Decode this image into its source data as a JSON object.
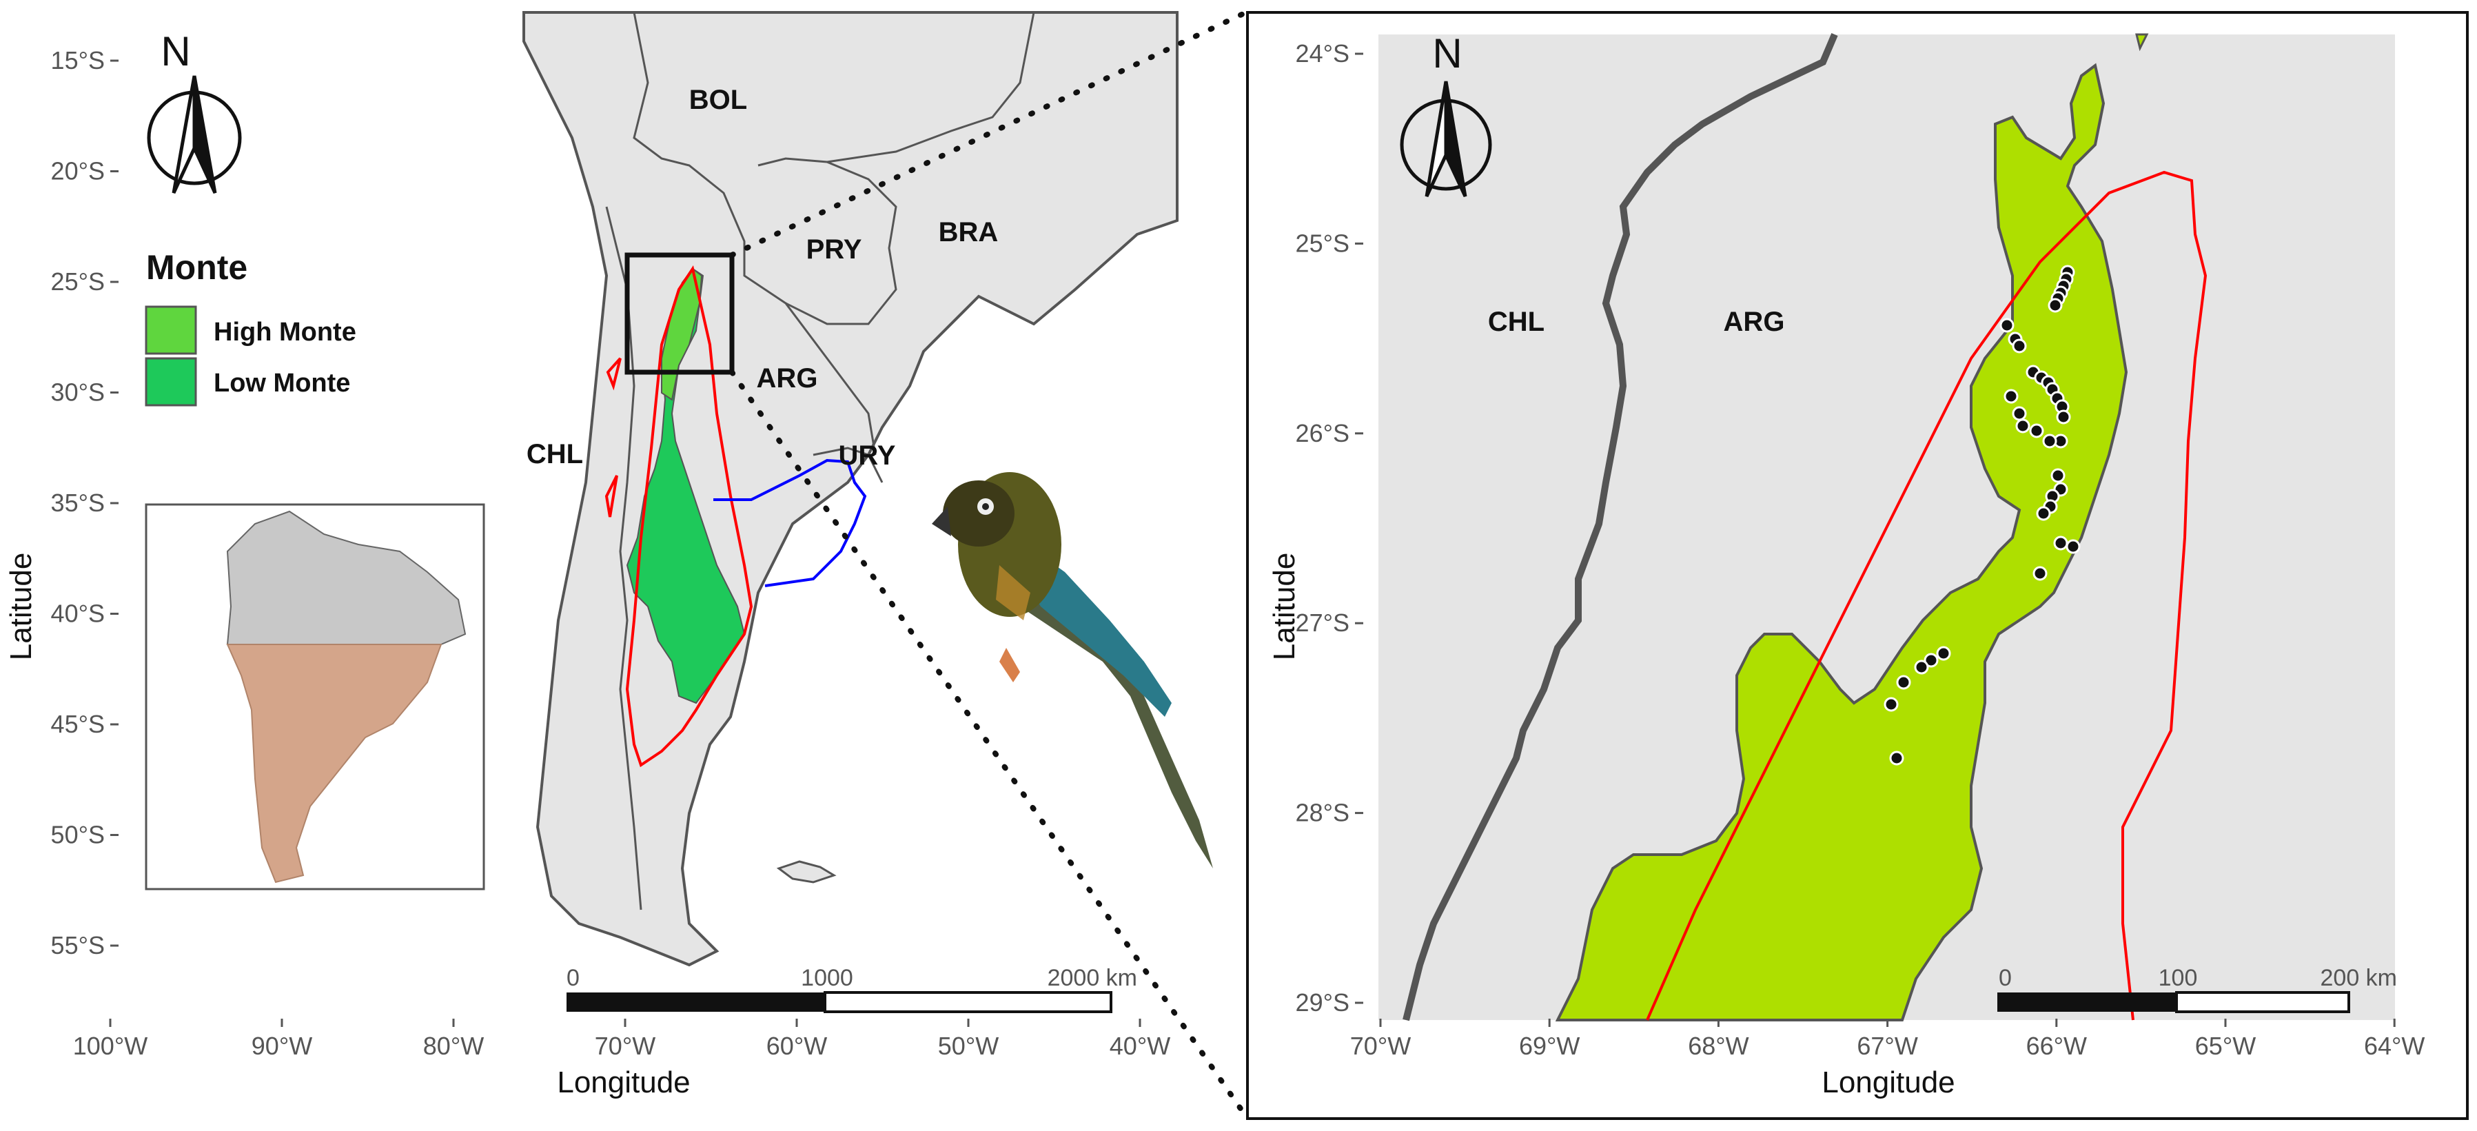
{
  "legend": {
    "title": "Monte",
    "items": [
      {
        "label": "High Monte",
        "color": "#5fd63e"
      },
      {
        "label": "Low Monte",
        "color": "#1ec95a"
      }
    ]
  },
  "north_arrow": {
    "label": "N"
  },
  "left_map": {
    "lat_ticks": [
      "15°S",
      "20°S",
      "25°S",
      "30°S",
      "35°S",
      "40°S",
      "45°S",
      "50°S",
      "55°S"
    ],
    "lon_ticks": [
      "100°W",
      "90°W",
      "80°W",
      "70°W",
      "60°W",
      "50°W",
      "40°W"
    ],
    "x_title": "Longitude",
    "y_title": "Latitude",
    "countries": [
      "BOL",
      "PRY",
      "BRA",
      "ARG",
      "URY",
      "CHL"
    ],
    "scalebar": {
      "start": "0",
      "mid": "1000",
      "end": "2000 km"
    }
  },
  "right_map": {
    "lat_ticks": [
      "24°S",
      "25°S",
      "26°S",
      "27°S",
      "28°S",
      "29°S"
    ],
    "lon_ticks": [
      "70°W",
      "69°W",
      "68°W",
      "67°W",
      "66°W",
      "65°W",
      "64°W"
    ],
    "x_title": "Longitude",
    "y_title": "Latitude",
    "countries": [
      "CHL",
      "ARG"
    ],
    "scalebar": {
      "start": "0",
      "mid": "100",
      "end": "200 km"
    }
  },
  "colors": {
    "land": "#e5e5e5",
    "border": "#555555",
    "monte": "#aedf00",
    "range_line": "#ff0000",
    "river_line": "#0000ff",
    "inset_highlight": "#d4a58a",
    "inset_grey": "#c8c8c8"
  }
}
